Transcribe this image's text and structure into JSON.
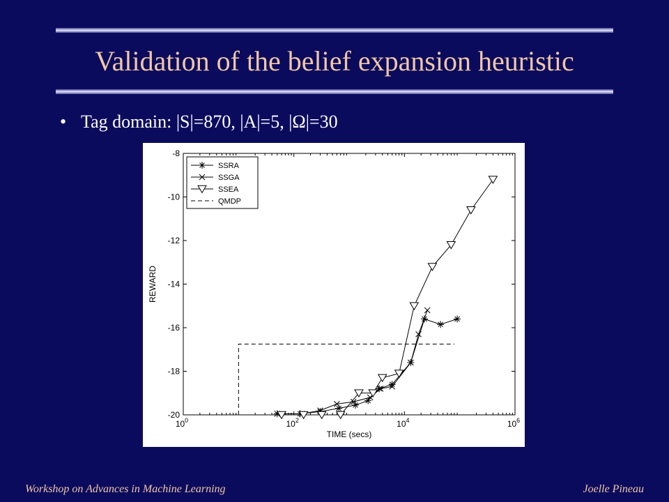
{
  "slide": {
    "title": "Validation of the belief expansion heuristic",
    "bullet": "Tag domain: |S|=870, |A|=5, |Ω|=30",
    "footer_left": "Workshop on Advances in Machine Learning",
    "footer_right": "Joelle Pineau"
  },
  "colors": {
    "background": "#0b0b5e",
    "title": "#f1c7a4",
    "text": "#ffffff"
  },
  "chart_data": {
    "type": "line",
    "xlabel": "TIME (secs)",
    "ylabel": "REWARD",
    "xscale": "log",
    "xlim": [
      1,
      1000000
    ],
    "ylim": [
      -20,
      -8
    ],
    "x_ticks": [
      {
        "base": "10",
        "exp": "0",
        "value": 1
      },
      {
        "base": "10",
        "exp": "2",
        "value": 100
      },
      {
        "base": "10",
        "exp": "4",
        "value": 10000
      },
      {
        "base": "10",
        "exp": "6",
        "value": 1000000
      }
    ],
    "y_ticks": [
      "-8",
      "-10",
      "-12",
      "-14",
      "-16",
      "-18",
      "-20"
    ],
    "legend_position": "top-left",
    "series": [
      {
        "name": "SSRA",
        "marker": "asterisk",
        "dash": "solid",
        "x": [
          50,
          130,
          300,
          650,
          1300,
          2200,
          3500,
          6000,
          13000,
          23000,
          45000,
          90000
        ],
        "y": [
          -19.95,
          -19.95,
          -19.85,
          -19.7,
          -19.55,
          -19.35,
          -18.8,
          -18.6,
          -17.6,
          -15.6,
          -15.85,
          -15.6
        ]
      },
      {
        "name": "SSGA",
        "marker": "x",
        "dash": "solid",
        "x": [
          50,
          140,
          300,
          600,
          1200,
          2400,
          3700,
          6000,
          13000,
          18000,
          26000
        ],
        "y": [
          -19.95,
          -19.95,
          -19.8,
          -19.5,
          -19.4,
          -19.2,
          -18.8,
          -18.7,
          -17.6,
          -16.3,
          -15.2
        ]
      },
      {
        "name": "SSEA",
        "marker": "triangle",
        "dash": "solid",
        "x": [
          60,
          150,
          320,
          700,
          1500,
          2700,
          4000,
          8000,
          15000,
          32000,
          70000,
          160000,
          400000
        ],
        "y": [
          -20,
          -20,
          -20,
          -20,
          -19,
          -19,
          -18.3,
          -18.1,
          -15,
          -13.2,
          -12.2,
          -10.6,
          -9.2
        ]
      },
      {
        "name": "QMDP",
        "marker": "none",
        "dash": "dashed",
        "x": [
          10,
          10,
          80000
        ],
        "y": [
          -20,
          -16.75,
          -16.75
        ]
      }
    ]
  }
}
